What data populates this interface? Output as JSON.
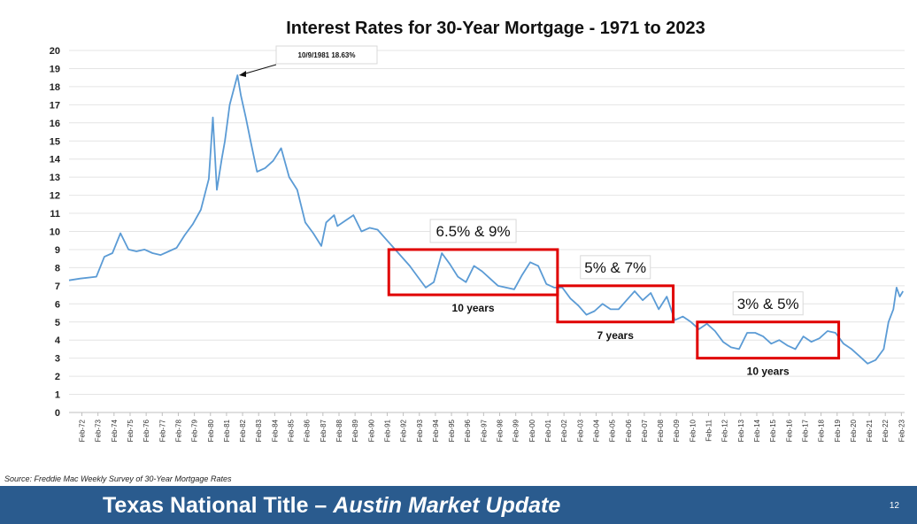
{
  "chart_data": {
    "type": "line",
    "title": "Interest Rates for 30-Year Mortgage - 1971 to 2023",
    "ylim": [
      0,
      20
    ],
    "yticks": [
      "0",
      "1",
      "2",
      "3",
      "4",
      "5",
      "6",
      "7",
      "8",
      "9",
      "10",
      "11",
      "12",
      "13",
      "14",
      "15",
      "16",
      "17",
      "18",
      "19",
      "20"
    ],
    "xticks": [
      "Feb-72",
      "Feb-73",
      "Feb-74",
      "Feb-75",
      "Feb-76",
      "Feb-77",
      "Feb-78",
      "Feb-79",
      "Feb-80",
      "Feb-81",
      "Feb-82",
      "Feb-83",
      "Feb-84",
      "Feb-85",
      "Feb-86",
      "Feb-87",
      "Feb-88",
      "Feb-89",
      "Feb-90",
      "Feb-91",
      "Feb-92",
      "Feb-93",
      "Feb-94",
      "Feb-95",
      "Feb-96",
      "Feb-97",
      "Feb-98",
      "Feb-99",
      "Feb-00",
      "Feb-01",
      "Feb-02",
      "Feb-03",
      "Feb-04",
      "Feb-05",
      "Feb-06",
      "Feb-07",
      "Feb-08",
      "Feb-09",
      "Feb-10",
      "Feb-11",
      "Feb-12",
      "Feb-13",
      "Feb-14",
      "Feb-15",
      "Feb-16",
      "Feb-17",
      "Feb-18",
      "Feb-19",
      "Feb-20",
      "Feb-21",
      "Feb-22",
      "Feb-23"
    ],
    "grid": true,
    "series": [
      {
        "color": "#5b9bd5",
        "x": [
          1971.3,
          1972.0,
          1973.0,
          1973.5,
          1974.0,
          1974.5,
          1975.0,
          1975.5,
          1976.0,
          1976.5,
          1977.0,
          1977.5,
          1978.0,
          1978.5,
          1979.0,
          1979.5,
          1980.0,
          1980.25,
          1980.5,
          1980.8,
          1981.0,
          1981.3,
          1981.78,
          1982.0,
          1982.3,
          1982.6,
          1983.0,
          1983.5,
          1984.0,
          1984.5,
          1985.0,
          1985.5,
          1986.0,
          1986.5,
          1987.0,
          1987.3,
          1987.8,
          1988.0,
          1988.5,
          1989.0,
          1989.5,
          1990.0,
          1990.5,
          1991.0,
          1991.5,
          1992.0,
          1992.5,
          1993.0,
          1993.5,
          1994.0,
          1994.5,
          1995.0,
          1995.5,
          1996.0,
          1996.5,
          1997.0,
          1997.5,
          1998.0,
          1998.5,
          1999.0,
          1999.5,
          2000.0,
          2000.5,
          2001.0,
          2001.5,
          2002.0,
          2002.5,
          2003.0,
          2003.5,
          2004.0,
          2004.5,
          2005.0,
          2005.5,
          2006.0,
          2006.5,
          2007.0,
          2007.5,
          2008.0,
          2008.5,
          2009.0,
          2009.5,
          2010.0,
          2010.5,
          2011.0,
          2011.5,
          2012.0,
          2012.5,
          2013.0,
          2013.5,
          2014.0,
          2014.5,
          2015.0,
          2015.5,
          2016.0,
          2016.5,
          2017.0,
          2017.5,
          2018.0,
          2018.5,
          2019.0,
          2019.5,
          2020.0,
          2020.5,
          2021.0,
          2021.5,
          2022.0,
          2022.3,
          2022.6,
          2022.8,
          2023.0,
          2023.2
        ],
        "values": [
          7.3,
          7.4,
          7.5,
          8.6,
          8.8,
          9.9,
          9.0,
          8.9,
          9.0,
          8.8,
          8.7,
          8.9,
          9.1,
          9.8,
          10.4,
          11.2,
          12.9,
          16.3,
          12.3,
          14.0,
          15.0,
          17.0,
          18.63,
          17.5,
          16.3,
          15.0,
          13.3,
          13.5,
          13.9,
          14.6,
          13.0,
          12.3,
          10.5,
          9.9,
          9.2,
          10.5,
          10.9,
          10.3,
          10.6,
          10.9,
          10.0,
          10.2,
          10.1,
          9.6,
          9.1,
          8.6,
          8.1,
          7.5,
          6.9,
          7.2,
          8.8,
          8.2,
          7.5,
          7.2,
          8.1,
          7.8,
          7.4,
          7.0,
          6.9,
          6.8,
          7.6,
          8.3,
          8.1,
          7.1,
          6.9,
          6.9,
          6.3,
          5.9,
          5.4,
          5.6,
          6.0,
          5.7,
          5.7,
          6.2,
          6.7,
          6.2,
          6.6,
          5.7,
          6.4,
          5.1,
          5.3,
          5.0,
          4.6,
          4.9,
          4.5,
          3.9,
          3.6,
          3.5,
          4.4,
          4.4,
          4.2,
          3.8,
          4.0,
          3.7,
          3.5,
          4.2,
          3.9,
          4.1,
          4.5,
          4.4,
          3.8,
          3.5,
          3.1,
          2.7,
          2.9,
          3.5,
          5.0,
          5.7,
          6.9,
          6.4,
          6.7
        ]
      }
    ],
    "annotations": {
      "peak_label": "10/9/1981 18.63%",
      "boxes": [
        {
          "label": "6.5% & 9%",
          "span": "10 years",
          "x0": 1991.2,
          "x1": 2001.7,
          "y0": 6.5,
          "y1": 9.0
        },
        {
          "label": "5% & 7%",
          "span": "7 years",
          "x0": 2001.7,
          "x1": 2008.9,
          "y0": 5.0,
          "y1": 7.0
        },
        {
          "label": "3% & 5%",
          "span": "10 years",
          "x0": 2010.4,
          "x1": 2019.2,
          "y0": 3.0,
          "y1": 5.0
        }
      ]
    }
  },
  "source": "Source: Freddie Mac Weekly Survey of 30-Year Mortgage Rates",
  "footer": {
    "title": "Texas National Title – ",
    "title_emphasis": "Austin Market Update",
    "page_number": "12"
  }
}
